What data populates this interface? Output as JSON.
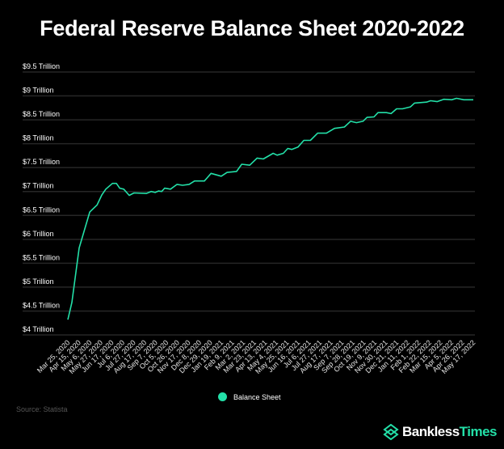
{
  "chart_data": {
    "type": "line",
    "title": "Federal Reserve Balance Sheet 2020-2022",
    "xlabel": "",
    "ylabel": "",
    "x_unit": "weeks since Mar 25, 2020",
    "ylim": [
      4,
      9.5
    ],
    "xlim": [
      0,
      111
    ],
    "grid": true,
    "legend_placement": "bottom-center",
    "yticks": [
      {
        "value": 4,
        "label": "$4 Trillion"
      },
      {
        "value": 4.5,
        "label": "$4.5 Trillion"
      },
      {
        "value": 5,
        "label": "$5 Trillion"
      },
      {
        "value": 5.5,
        "label": "$5.5 Trillion"
      },
      {
        "value": 6,
        "label": "$6 Trillion"
      },
      {
        "value": 6.5,
        "label": "$6.5 Trillion"
      },
      {
        "value": 7,
        "label": "$7 Trillion"
      },
      {
        "value": 7.5,
        "label": "$7.5 Trillion"
      },
      {
        "value": 8,
        "label": "$8 Trillion"
      },
      {
        "value": 8.5,
        "label": "$8.5 Trillion"
      },
      {
        "value": 9,
        "label": "$9 Trillion"
      },
      {
        "value": 9.5,
        "label": "$9.5 Trillion"
      }
    ],
    "xticks": [
      "Mar 25, 2020",
      "Apr 15, 2020",
      "May 6, 2020",
      "May 27, 2020",
      "Jun 17, 2020",
      "Jul 6, 2020",
      "Jul 27, 2020",
      "Aug 17, 2020",
      "Sep 7, 2020",
      "Oct 5, 2020",
      "Oct 26, 2020",
      "Nov 17, 2020",
      "Dec 8, 2020",
      "Dec 29, 2020",
      "Jan 19, 2021",
      "Feb 9, 2021",
      "Mar 2, 2021",
      "Mar 23, 2021",
      "Apr 13, 2021",
      "May 4, 2021",
      "May 25, 2021",
      "Jun 16, 2021",
      "Jul 6, 2021",
      "Jul 27, 2021",
      "Aug 17, 2021",
      "Sep 7, 2021",
      "Sep 28, 2021",
      "Oct 19, 2021",
      "Nov 9, 2021",
      "Nov 30, 2021",
      "Dec 21, 2021",
      "Jan 11, 2022",
      "Feb 1, 2022",
      "Feb 22, 2022",
      "Mar 15, 2022",
      "Apr 5, 2022",
      "Apr 26, 2022",
      "May 17, 2022"
    ],
    "xtick_step_weeks": 3,
    "series": [
      {
        "name": "Balance Sheet",
        "color": "#23e0a8",
        "x": [
          0,
          1.1,
          3.1,
          6,
          8,
          9.3,
          10.4,
          12.2,
          13.3,
          14.2,
          15.3,
          16.8,
          18.1,
          21.5,
          22.8,
          23.9,
          24.8,
          25.7,
          26.5,
          28.1,
          29.9,
          31.4,
          33.2,
          34.7,
          37.4,
          39.2,
          42,
          43.6,
          46.2,
          47.6,
          49.8,
          51.8,
          53.5,
          56.2,
          57.3,
          59,
          60.2,
          61.3,
          63,
          64.6,
          66.4,
          68.4,
          70.8,
          73,
          75.7,
          77.4,
          79,
          80.8,
          81.9,
          83.8,
          84.9,
          87.2,
          88.5,
          90,
          91.6,
          93.8,
          94.9,
          98.2,
          99.3,
          101.1,
          102.9,
          105.1,
          106.4,
          108.4,
          111
        ],
        "y": [
          4.32,
          4.68,
          5.82,
          6.57,
          6.72,
          6.93,
          7.05,
          7.17,
          7.17,
          7.07,
          7.05,
          6.92,
          6.97,
          6.96,
          7.0,
          6.98,
          7.01,
          7.0,
          7.07,
          7.05,
          7.15,
          7.13,
          7.15,
          7.22,
          7.22,
          7.38,
          7.32,
          7.4,
          7.42,
          7.57,
          7.55,
          7.7,
          7.68,
          7.8,
          7.76,
          7.8,
          7.9,
          7.88,
          7.93,
          8.07,
          8.07,
          8.22,
          8.22,
          8.32,
          8.35,
          8.47,
          8.44,
          8.47,
          8.55,
          8.56,
          8.65,
          8.65,
          8.63,
          8.73,
          8.73,
          8.77,
          8.85,
          8.87,
          8.9,
          8.88,
          8.93,
          8.92,
          8.95,
          8.92,
          8.92
        ]
      }
    ]
  },
  "legend": {
    "label": "Balance Sheet"
  },
  "source": "Source: Statista",
  "logo": {
    "part1": "Bankless",
    "part2": "Times"
  },
  "colors": {
    "accent": "#23e0a8",
    "grid": "#262626",
    "background": "#000000"
  }
}
